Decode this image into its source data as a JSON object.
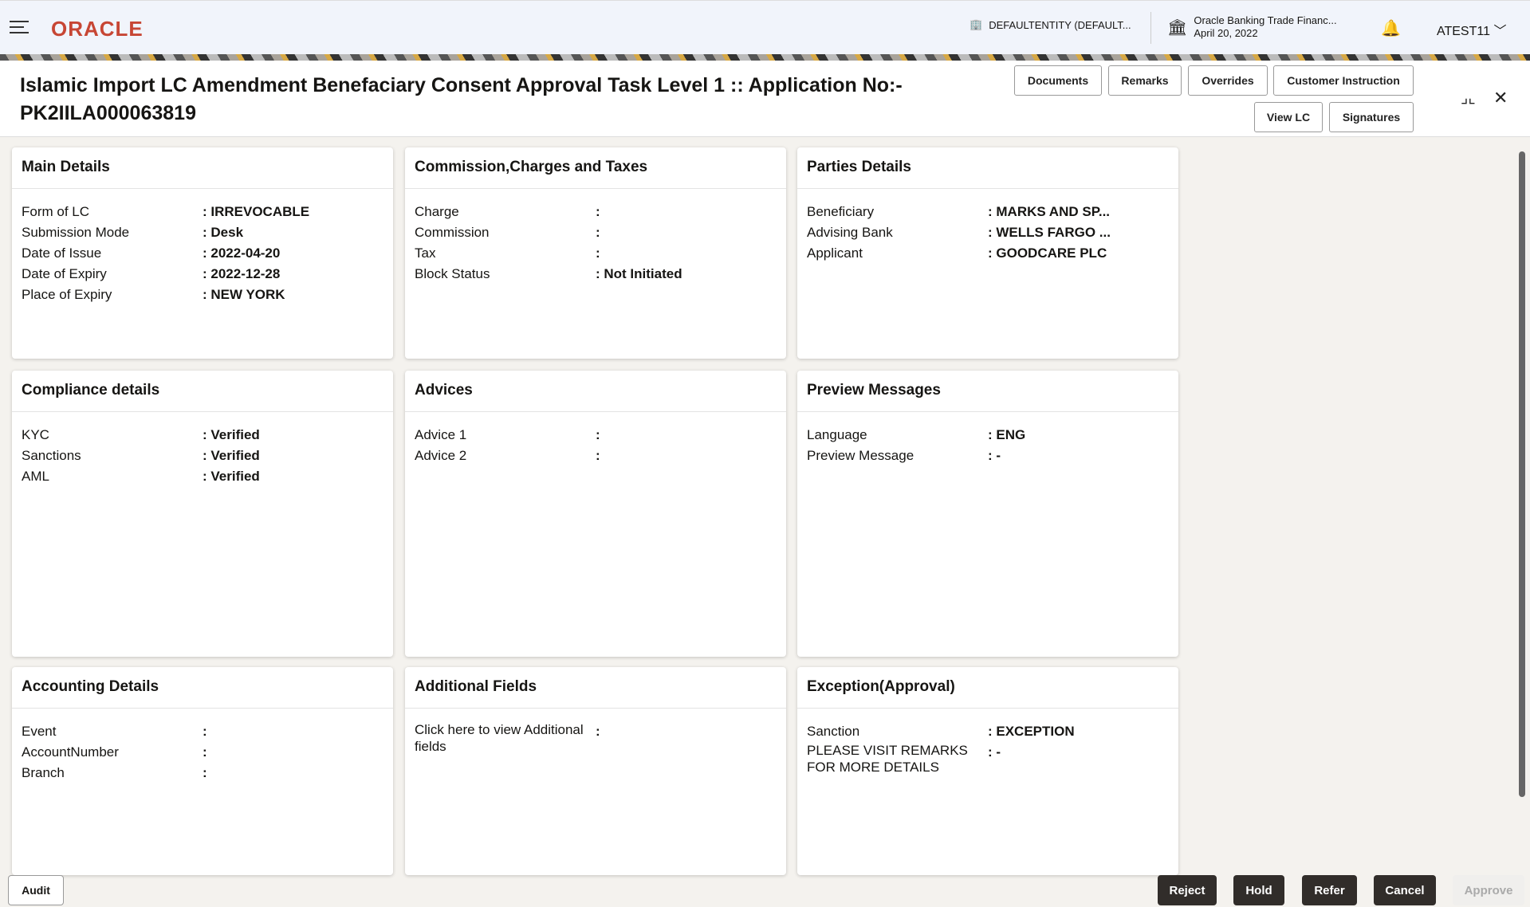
{
  "header": {
    "logo": "ORACLE",
    "entity": "DEFAULTENTITY (DEFAULT...",
    "bank_name": "Oracle Banking Trade Financ...",
    "date": "April 20, 2022",
    "user": "ATEST11"
  },
  "title": "Islamic Import LC Amendment Benefaciary Consent Approval Task Level 1 :: Application No:- PK2IILA000063819",
  "toolbar": [
    "Documents",
    "Remarks",
    "Overrides",
    "Customer Instruction",
    "View LC",
    "Signatures"
  ],
  "cards": [
    {
      "title": "Main Details",
      "rows": [
        [
          "Form of LC",
          ": IRREVOCABLE"
        ],
        [
          "Submission Mode",
          ": Desk"
        ],
        [
          "Date of Issue",
          ": 2022-04-20"
        ],
        [
          "Date of Expiry",
          ": 2022-12-28"
        ],
        [
          "Place of Expiry",
          ": NEW YORK"
        ]
      ]
    },
    {
      "title": "Commission,Charges and Taxes",
      "rows": [
        [
          "Charge",
          ":"
        ],
        [
          "Commission",
          ":"
        ],
        [
          "Tax",
          ":"
        ],
        [
          "Block Status",
          ": Not Initiated"
        ]
      ]
    },
    {
      "title": "Parties Details",
      "rows": [
        [
          "Beneficiary",
          ": MARKS AND SP..."
        ],
        [
          "Advising Bank",
          ": WELLS FARGO ..."
        ],
        [
          "Applicant",
          ": GOODCARE PLC"
        ]
      ]
    },
    {
      "title": "Compliance details",
      "rows": [
        [
          "KYC",
          ": Verified"
        ],
        [
          "Sanctions",
          ": Verified"
        ],
        [
          "AML",
          ": Verified"
        ]
      ]
    },
    {
      "title": "Advices",
      "rows": [
        [
          "Advice 1",
          ":"
        ],
        [
          "Advice 2",
          ":"
        ]
      ]
    },
    {
      "title": "Preview Messages",
      "rows": [
        [
          "Language",
          ": ENG"
        ],
        [
          "Preview Message",
          ": -"
        ]
      ]
    },
    {
      "title": "Accounting Details",
      "rows": [
        [
          "Event",
          ":"
        ],
        [
          "AccountNumber",
          ":"
        ],
        [
          "Branch",
          ":"
        ]
      ]
    },
    {
      "title": "Additional Fields",
      "rows": [
        [
          "Click here to view Additional fields",
          ":"
        ]
      ]
    },
    {
      "title": "Exception(Approval)",
      "rows": [
        [
          "Sanction",
          ": EXCEPTION"
        ],
        [
          "PLEASE VISIT REMARKS FOR MORE DETAILS",
          ": -"
        ]
      ]
    }
  ],
  "footer": {
    "audit": "Audit",
    "reject": "Reject",
    "hold": "Hold",
    "refer": "Refer",
    "cancel": "Cancel",
    "approve": "Approve"
  }
}
